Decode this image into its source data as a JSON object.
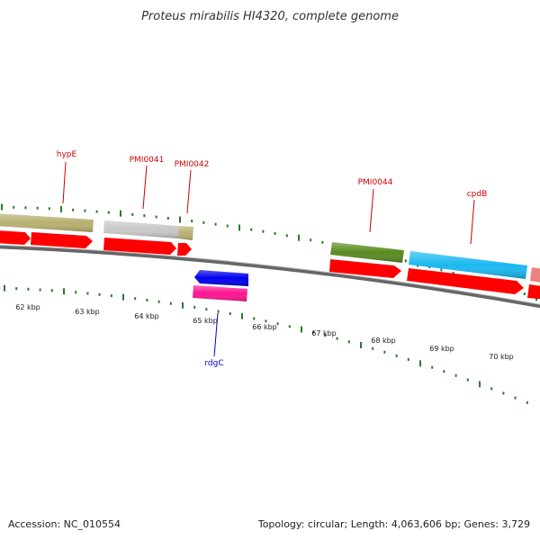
{
  "title": "Proteus mirabilis HI4320, complete genome",
  "footer": {
    "accession": "Accession: NC_010554",
    "summary": "Topology: circular; Length: 4,063,606 bp; Genes: 3,729"
  },
  "scale": {
    "unit": "kbp",
    "tick_labels": [
      "62 kbp",
      "63 kbp",
      "64 kbp",
      "65 kbp",
      "66 kbp",
      "67 kbp",
      "68 kbp",
      "69 kbp",
      "70 kbp"
    ]
  },
  "genes": [
    {
      "name": "hypE",
      "strand": "forward",
      "color": "#b8b070"
    },
    {
      "name": "PMI0041",
      "strand": "forward",
      "color": "#c0c0c0"
    },
    {
      "name": "PMI0042",
      "strand": "forward",
      "color": "#b8b070"
    },
    {
      "name": "PMI0044",
      "strand": "forward",
      "color": "#5a8a20"
    },
    {
      "name": "cpdB",
      "strand": "forward",
      "color": "#1ab8f0"
    },
    {
      "name": "rdgC",
      "strand": "reverse",
      "color": "#ff1493"
    }
  ],
  "colors": {
    "cds": "#ff0000",
    "reverse_cds": "#0000ff",
    "backbone": "#808080",
    "ticks": "#2a7a2a",
    "forward_label": "#cc0000",
    "reverse_label": "#0000cc"
  }
}
